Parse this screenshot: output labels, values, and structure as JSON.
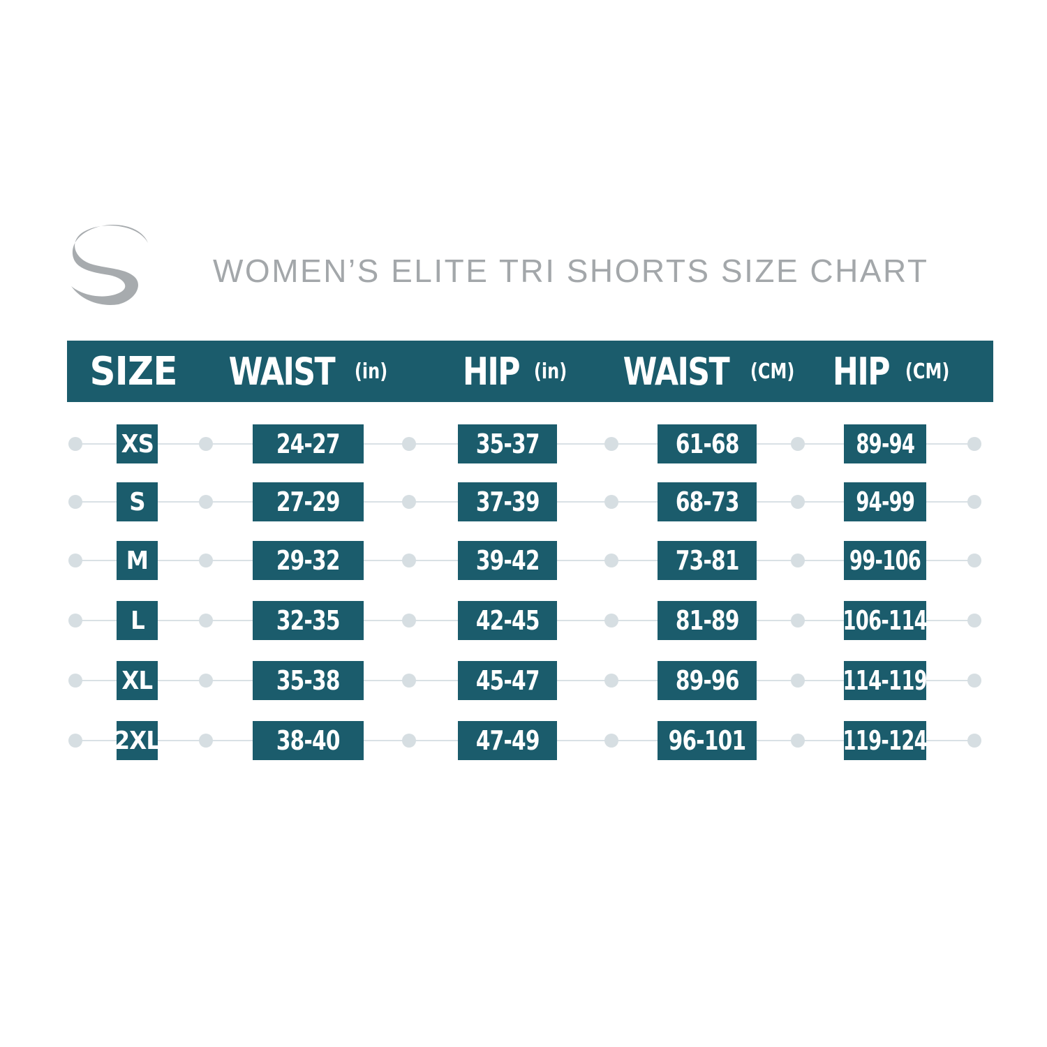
{
  "title": "WOMEN’S ELITE TRI SHORTS SIZE CHART",
  "colors": {
    "teal": "#1b5c6c",
    "title_gray": "#a3a7aa",
    "logo_gray": "#a7abae",
    "rail": "#d9e1e5"
  },
  "logo": {
    "icon": "s-swoosh-logo"
  },
  "header": {
    "size": "SIZE",
    "waist_in": {
      "label": "WAIST",
      "unit": "(in)"
    },
    "hip_in": {
      "label": "HIP",
      "unit": "(in)"
    },
    "waist_cm": {
      "label": "WAIST",
      "unit": "(CM)"
    },
    "hip_cm": {
      "label": "HIP",
      "unit": "(CM)"
    }
  },
  "rows": [
    {
      "size": "XS",
      "waist_in": "24-27",
      "hip_in": "35-37",
      "waist_cm": "61-68",
      "hip_cm": "89-94"
    },
    {
      "size": "S",
      "waist_in": "27-29",
      "hip_in": "37-39",
      "waist_cm": "68-73",
      "hip_cm": "94-99"
    },
    {
      "size": "M",
      "waist_in": "29-32",
      "hip_in": "39-42",
      "waist_cm": "73-81",
      "hip_cm": "99-106"
    },
    {
      "size": "L",
      "waist_in": "32-35",
      "hip_in": "42-45",
      "waist_cm": "81-89",
      "hip_cm": "106-114"
    },
    {
      "size": "XL",
      "waist_in": "35-38",
      "hip_in": "45-47",
      "waist_cm": "89-96",
      "hip_cm": "114-119"
    },
    {
      "size": "2XL",
      "waist_in": "38-40",
      "hip_in": "47-49",
      "waist_cm": "96-101",
      "hip_cm": "119-124"
    }
  ]
}
